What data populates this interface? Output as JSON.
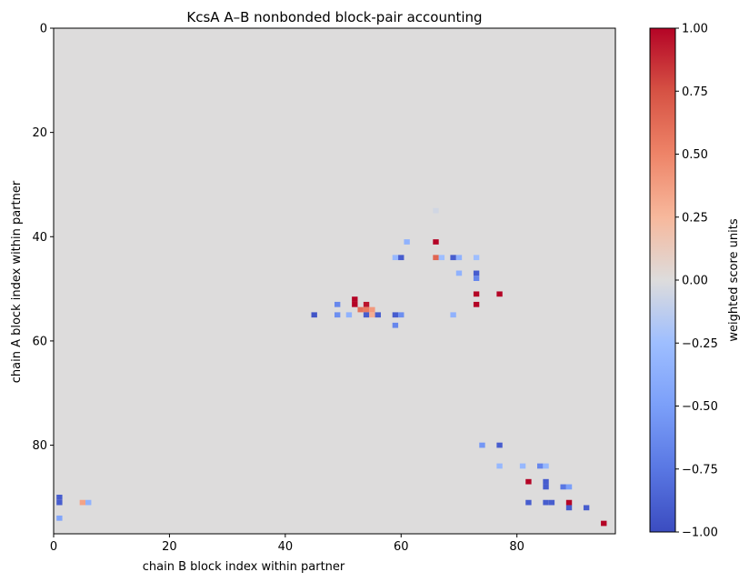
{
  "chart_data": {
    "type": "heatmap",
    "title": "KcsA A–B nonbonded block-pair accounting",
    "xlabel": "chain B block index within partner",
    "ylabel": "chain A block index within partner",
    "colorbar_label": "weighted score units",
    "colormap": "coolwarm",
    "background_color": "#dddcdc",
    "vmin": -1.0,
    "vmax": 1.0,
    "xlim": [
      0,
      97
    ],
    "ylim": [
      97,
      0
    ],
    "xticks": [
      "0",
      "20",
      "40",
      "60",
      "80"
    ],
    "yticks": [
      "0",
      "20",
      "40",
      "60",
      "80"
    ],
    "colorbar_ticks": [
      "−1.00",
      "−0.75",
      "−0.50",
      "−0.25",
      "0.00",
      "0.25",
      "0.50",
      "0.75",
      "1.00"
    ],
    "grid": false,
    "cells": [
      {
        "x": 66,
        "y": 35,
        "v": -0.05
      },
      {
        "x": 61,
        "y": 41,
        "v": -0.35
      },
      {
        "x": 66,
        "y": 41,
        "v": 1.0
      },
      {
        "x": 59,
        "y": 44,
        "v": -0.3
      },
      {
        "x": 60,
        "y": 44,
        "v": -0.9
      },
      {
        "x": 66,
        "y": 44,
        "v": 0.65
      },
      {
        "x": 67,
        "y": 44,
        "v": -0.25
      },
      {
        "x": 69,
        "y": 44,
        "v": -0.9
      },
      {
        "x": 70,
        "y": 44,
        "v": -0.35
      },
      {
        "x": 73,
        "y": 44,
        "v": -0.25
      },
      {
        "x": 70,
        "y": 47,
        "v": -0.35
      },
      {
        "x": 73,
        "y": 47,
        "v": -0.9
      },
      {
        "x": 73,
        "y": 48,
        "v": -0.65
      },
      {
        "x": 73,
        "y": 51,
        "v": 1.0
      },
      {
        "x": 77,
        "y": 51,
        "v": 1.0
      },
      {
        "x": 52,
        "y": 52,
        "v": 1.0
      },
      {
        "x": 52,
        "y": 53,
        "v": 1.0
      },
      {
        "x": 49,
        "y": 53,
        "v": -0.65
      },
      {
        "x": 54,
        "y": 53,
        "v": 0.95
      },
      {
        "x": 73,
        "y": 53,
        "v": 1.0
      },
      {
        "x": 53,
        "y": 54,
        "v": 0.6
      },
      {
        "x": 54,
        "y": 54,
        "v": 0.55
      },
      {
        "x": 55,
        "y": 54,
        "v": 0.4
      },
      {
        "x": 45,
        "y": 55,
        "v": -0.95
      },
      {
        "x": 49,
        "y": 55,
        "v": -0.6
      },
      {
        "x": 51,
        "y": 55,
        "v": -0.35
      },
      {
        "x": 54,
        "y": 55,
        "v": -0.9
      },
      {
        "x": 55,
        "y": 55,
        "v": 0.3
      },
      {
        "x": 56,
        "y": 55,
        "v": -0.9
      },
      {
        "x": 59,
        "y": 55,
        "v": -0.9
      },
      {
        "x": 60,
        "y": 55,
        "v": -0.6
      },
      {
        "x": 69,
        "y": 55,
        "v": -0.35
      },
      {
        "x": 59,
        "y": 57,
        "v": -0.65
      },
      {
        "x": 74,
        "y": 80,
        "v": -0.55
      },
      {
        "x": 77,
        "y": 80,
        "v": -0.9
      },
      {
        "x": 77,
        "y": 84,
        "v": -0.3
      },
      {
        "x": 81,
        "y": 84,
        "v": -0.3
      },
      {
        "x": 84,
        "y": 84,
        "v": -0.65
      },
      {
        "x": 85,
        "y": 84,
        "v": -0.3
      },
      {
        "x": 82,
        "y": 87,
        "v": 1.0
      },
      {
        "x": 85,
        "y": 87,
        "v": -0.9
      },
      {
        "x": 85,
        "y": 88,
        "v": -0.9
      },
      {
        "x": 88,
        "y": 88,
        "v": -0.75
      },
      {
        "x": 89,
        "y": 88,
        "v": -0.5
      },
      {
        "x": 1,
        "y": 90,
        "v": -0.9
      },
      {
        "x": 1,
        "y": 91,
        "v": -0.9
      },
      {
        "x": 5,
        "y": 91,
        "v": 0.35
      },
      {
        "x": 6,
        "y": 91,
        "v": -0.35
      },
      {
        "x": 82,
        "y": 91,
        "v": -0.9
      },
      {
        "x": 85,
        "y": 91,
        "v": -0.9
      },
      {
        "x": 86,
        "y": 91,
        "v": -0.9
      },
      {
        "x": 89,
        "y": 91,
        "v": 1.0
      },
      {
        "x": 89,
        "y": 92,
        "v": -0.9
      },
      {
        "x": 92,
        "y": 92,
        "v": -0.9
      },
      {
        "x": 1,
        "y": 94,
        "v": -0.45
      },
      {
        "x": 95,
        "y": 95,
        "v": 1.0
      }
    ]
  }
}
